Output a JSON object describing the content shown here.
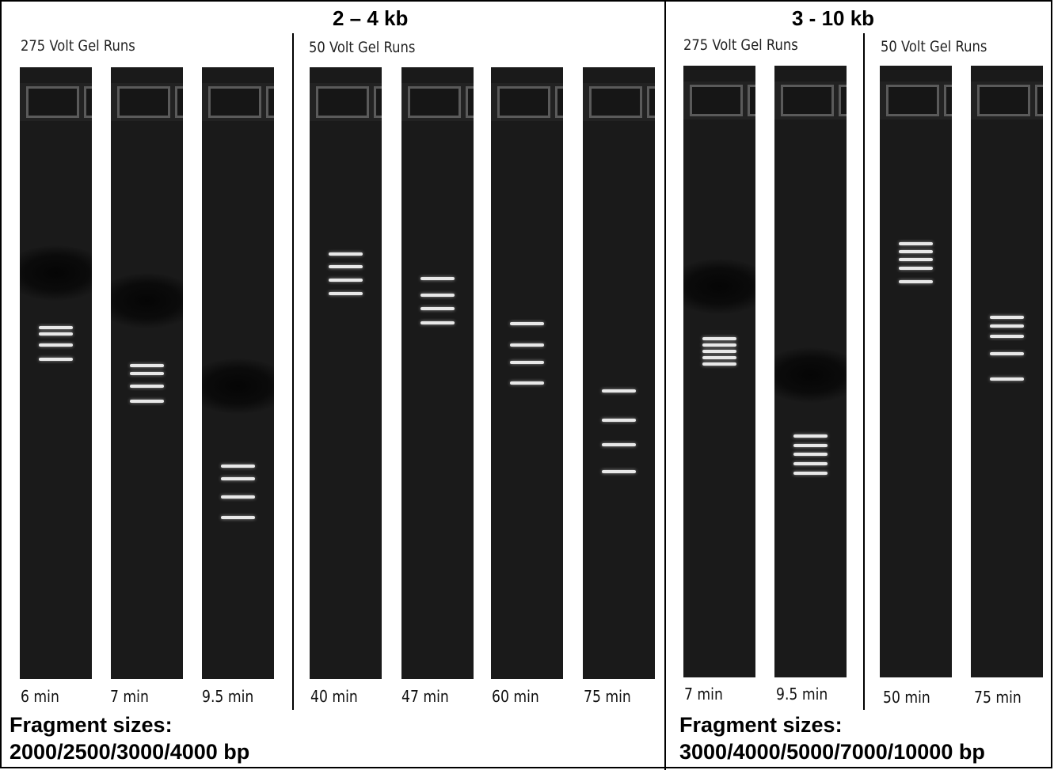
{
  "left_panel": {
    "title": "2 – 4 kb",
    "groups": [
      {
        "label": "275 Volt Gel Runs"
      },
      {
        "label": "50 Volt Gel Runs"
      }
    ],
    "lanes": [
      {
        "time": "6 min"
      },
      {
        "time": "7 min"
      },
      {
        "time": "9.5 min"
      },
      {
        "time": "40 min"
      },
      {
        "time": "47 min"
      },
      {
        "time": "60 min"
      },
      {
        "time": "75 min"
      }
    ],
    "fragment_caption": "Fragment sizes:",
    "fragment_sizes": "2000/2500/3000/4000 bp"
  },
  "right_panel": {
    "title": "3 - 10 kb",
    "groups": [
      {
        "label": "275 Volt Gel Runs"
      },
      {
        "label": "50 Volt Gel Runs"
      }
    ],
    "lanes": [
      {
        "time": "7 min"
      },
      {
        "time": "9.5 min"
      },
      {
        "time": "50 min"
      },
      {
        "time": "75 min"
      }
    ],
    "fragment_caption": "Fragment sizes:",
    "fragment_sizes": "3000/4000/5000/7000/10000 bp"
  },
  "colors": {
    "gel": "#1a1a1a",
    "band": "#e8e8e8",
    "well_border": "#5a5a5a"
  }
}
